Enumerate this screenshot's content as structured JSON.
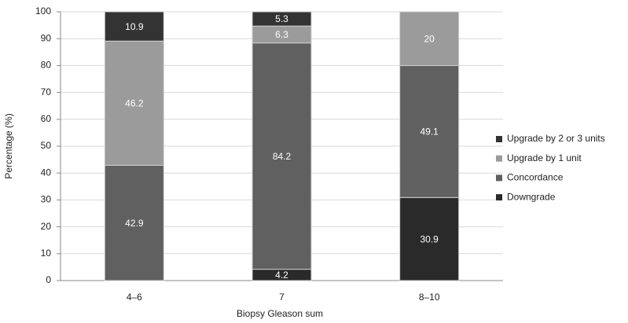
{
  "chart_data": {
    "type": "stacked-bar",
    "x_label": "Biopsy Gleason sum",
    "y_label": "Percentage (%)",
    "categories": [
      "4–6",
      "7",
      "8–10"
    ],
    "series": [
      {
        "name": "Downgrade",
        "color": "#2a2a2a",
        "values": [
          null,
          4.2,
          30.9
        ]
      },
      {
        "name": "Concordance",
        "color": "#606060",
        "values": [
          42.9,
          84.2,
          49.1
        ]
      },
      {
        "name": "Upgrade by 1 unit",
        "color": "#9b9b9b",
        "values": [
          46.2,
          6.3,
          20
        ]
      },
      {
        "name": "Upgrade by 2 or 3 units",
        "color": "#333333",
        "values": [
          10.9,
          5.3,
          null
        ]
      }
    ],
    "ylim": [
      0,
      100
    ],
    "yticks": [
      0,
      10,
      20,
      30,
      40,
      50,
      60,
      70,
      80,
      90,
      100
    ],
    "grid": true
  }
}
